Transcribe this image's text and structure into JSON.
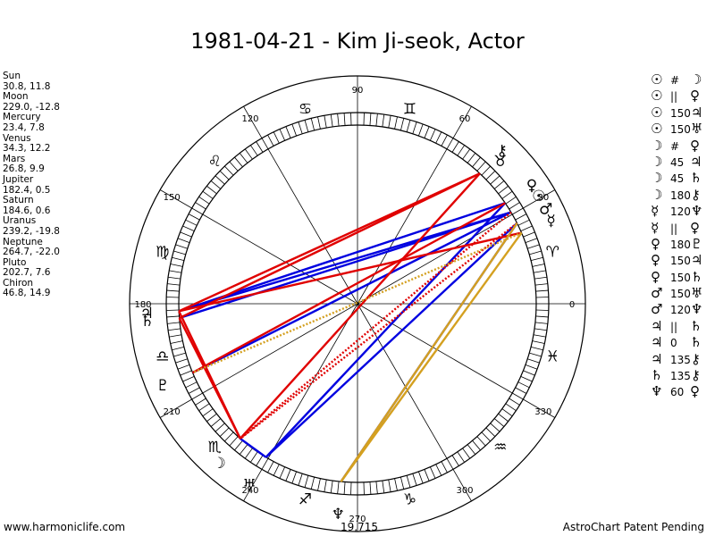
{
  "title": "1981-04-21 - Kim Ji-seok, Actor",
  "positions": [
    {
      "name": "Sun",
      "value": "30.8, 11.8"
    },
    {
      "name": "Moon",
      "value": "229.0, -12.8"
    },
    {
      "name": "Mercury",
      "value": "23.4, 7.8"
    },
    {
      "name": "Venus",
      "value": "34.3, 12.2"
    },
    {
      "name": "Mars",
      "value": "26.8, 9.9"
    },
    {
      "name": "Jupiter",
      "value": "182.4, 0.5"
    },
    {
      "name": "Saturn",
      "value": "184.6, 0.6"
    },
    {
      "name": "Uranus",
      "value": "239.2, -19.8"
    },
    {
      "name": "Neptune",
      "value": "264.7, -22.0"
    },
    {
      "name": "Pluto",
      "value": "202.7, 7.6"
    },
    {
      "name": "Chiron",
      "value": "46.8, 14.9"
    }
  ],
  "degree_labels": [
    {
      "deg": 0,
      "label": "0"
    },
    {
      "deg": 30,
      "label": "30"
    },
    {
      "deg": 60,
      "label": "60"
    },
    {
      "deg": 90,
      "label": "90"
    },
    {
      "deg": 120,
      "label": "120"
    },
    {
      "deg": 150,
      "label": "150"
    },
    {
      "deg": 180,
      "label": "180"
    },
    {
      "deg": 210,
      "label": "210"
    },
    {
      "deg": 240,
      "label": "240"
    },
    {
      "deg": 270,
      "label": "270"
    },
    {
      "deg": 300,
      "label": "300"
    },
    {
      "deg": 330,
      "label": "330"
    }
  ],
  "signs": [
    {
      "deg": 15,
      "glyph": "♈"
    },
    {
      "deg": 45,
      "glyph": "♉"
    },
    {
      "deg": 75,
      "glyph": "♊"
    },
    {
      "deg": 105,
      "glyph": "♋"
    },
    {
      "deg": 135,
      "glyph": "♌"
    },
    {
      "deg": 165,
      "glyph": "♍"
    },
    {
      "deg": 195,
      "glyph": "♎"
    },
    {
      "deg": 225,
      "glyph": "♏"
    },
    {
      "deg": 255,
      "glyph": "♐"
    },
    {
      "deg": 285,
      "glyph": "♑"
    },
    {
      "deg": 315,
      "glyph": "♒"
    },
    {
      "deg": 345,
      "glyph": "♓"
    }
  ],
  "planets": [
    {
      "name": "Sun",
      "glyph": "☉",
      "deg": 30.8
    },
    {
      "name": "Moon",
      "glyph": "☽",
      "deg": 229.0
    },
    {
      "name": "Mercury",
      "glyph": "☿",
      "deg": 23.4
    },
    {
      "name": "Venus",
      "glyph": "♀",
      "deg": 34.3
    },
    {
      "name": "Mars",
      "glyph": "♂",
      "deg": 26.8
    },
    {
      "name": "Jupiter",
      "glyph": "♃",
      "deg": 182.4
    },
    {
      "name": "Saturn",
      "glyph": "♄",
      "deg": 184.6
    },
    {
      "name": "Uranus",
      "glyph": "♅",
      "deg": 239.2
    },
    {
      "name": "Neptune",
      "glyph": "♆",
      "deg": 264.7
    },
    {
      "name": "Pluto",
      "glyph": "♇",
      "deg": 202.7
    },
    {
      "name": "Chiron",
      "glyph": "⚷",
      "deg": 46.8
    }
  ],
  "aspect_lines": [
    {
      "from": "Sun",
      "to": "Jupiter",
      "color": "#0000e0",
      "style": "solid"
    },
    {
      "from": "Sun",
      "to": "Saturn",
      "color": "#0000e0",
      "style": "solid"
    },
    {
      "from": "Venus",
      "to": "Jupiter",
      "color": "#0000e0",
      "style": "solid"
    },
    {
      "from": "Venus",
      "to": "Uranus",
      "color": "#0000e0",
      "style": "solid"
    },
    {
      "from": "Mars",
      "to": "Uranus",
      "color": "#0000e0",
      "style": "solid"
    },
    {
      "from": "Moon",
      "to": "Uranus",
      "color": "#0000e0",
      "style": "solid"
    },
    {
      "from": "Sun",
      "to": "Pluto",
      "color": "#0000e0",
      "style": "solid"
    },
    {
      "from": "Mars",
      "to": "Neptune",
      "color": "#0000e0",
      "style": "solid"
    },
    {
      "from": "Chiron",
      "to": "Jupiter",
      "color": "#e00000",
      "style": "solid"
    },
    {
      "from": "Chiron",
      "to": "Saturn",
      "color": "#e00000",
      "style": "solid"
    },
    {
      "from": "Chiron",
      "to": "Moon",
      "color": "#e00000",
      "style": "solid"
    },
    {
      "from": "Venus",
      "to": "Pluto",
      "color": "#e00000",
      "style": "solid"
    },
    {
      "from": "Saturn",
      "to": "Moon",
      "color": "#e00000",
      "style": "solid"
    },
    {
      "from": "Jupiter",
      "to": "Moon",
      "color": "#e00000",
      "style": "solid"
    },
    {
      "from": "Mercury",
      "to": "Jupiter",
      "color": "#e00000",
      "style": "solid"
    },
    {
      "from": "Sun",
      "to": "Moon",
      "color": "#e00000",
      "style": "dotted"
    },
    {
      "from": "Mars",
      "to": "Moon",
      "color": "#e00000",
      "style": "dotted"
    },
    {
      "from": "Mercury",
      "to": "Neptune",
      "color": "#d4a020",
      "style": "solid"
    },
    {
      "from": "Mars",
      "to": "Neptune",
      "color": "#d4a020",
      "style": "solid"
    },
    {
      "from": "Mercury",
      "to": "Pluto",
      "color": "#d4a020",
      "style": "dotted"
    }
  ],
  "aspect_legend": [
    {
      "p1": "☉",
      "sym": "#",
      "p2": "☽"
    },
    {
      "p1": "☉",
      "sym": "||",
      "p2": "♀"
    },
    {
      "p1": "☉",
      "sym": "150",
      "p2": "♃"
    },
    {
      "p1": "☉",
      "sym": "150",
      "p2": "♅"
    },
    {
      "p1": "☽",
      "sym": "#",
      "p2": "♀"
    },
    {
      "p1": "☽",
      "sym": "45",
      "p2": "♃"
    },
    {
      "p1": "☽",
      "sym": "45",
      "p2": "♄"
    },
    {
      "p1": "☽",
      "sym": "180",
      "p2": "⚷"
    },
    {
      "p1": "☿",
      "sym": "120",
      "p2": "♆"
    },
    {
      "p1": "☿",
      "sym": "||",
      "p2": "♀"
    },
    {
      "p1": "♀",
      "sym": "180",
      "p2": "♇"
    },
    {
      "p1": "♀",
      "sym": "150",
      "p2": "♃"
    },
    {
      "p1": "♀",
      "sym": "150",
      "p2": "♄"
    },
    {
      "p1": "♂",
      "sym": "150",
      "p2": "♅"
    },
    {
      "p1": "♂",
      "sym": "120",
      "p2": "♆"
    },
    {
      "p1": "♃",
      "sym": "||",
      "p2": "♄"
    },
    {
      "p1": "♃",
      "sym": "0",
      "p2": "♄"
    },
    {
      "p1": "♃",
      "sym": "135",
      "p2": "⚷"
    },
    {
      "p1": "♄",
      "sym": "135",
      "p2": "⚷"
    },
    {
      "p1": "♆",
      "sym": "60",
      "p2": "♀"
    }
  ],
  "neptune_note": "19,715",
  "footer_left": "www.harmoniclife.com",
  "footer_right": "AstroChart Patent Pending"
}
